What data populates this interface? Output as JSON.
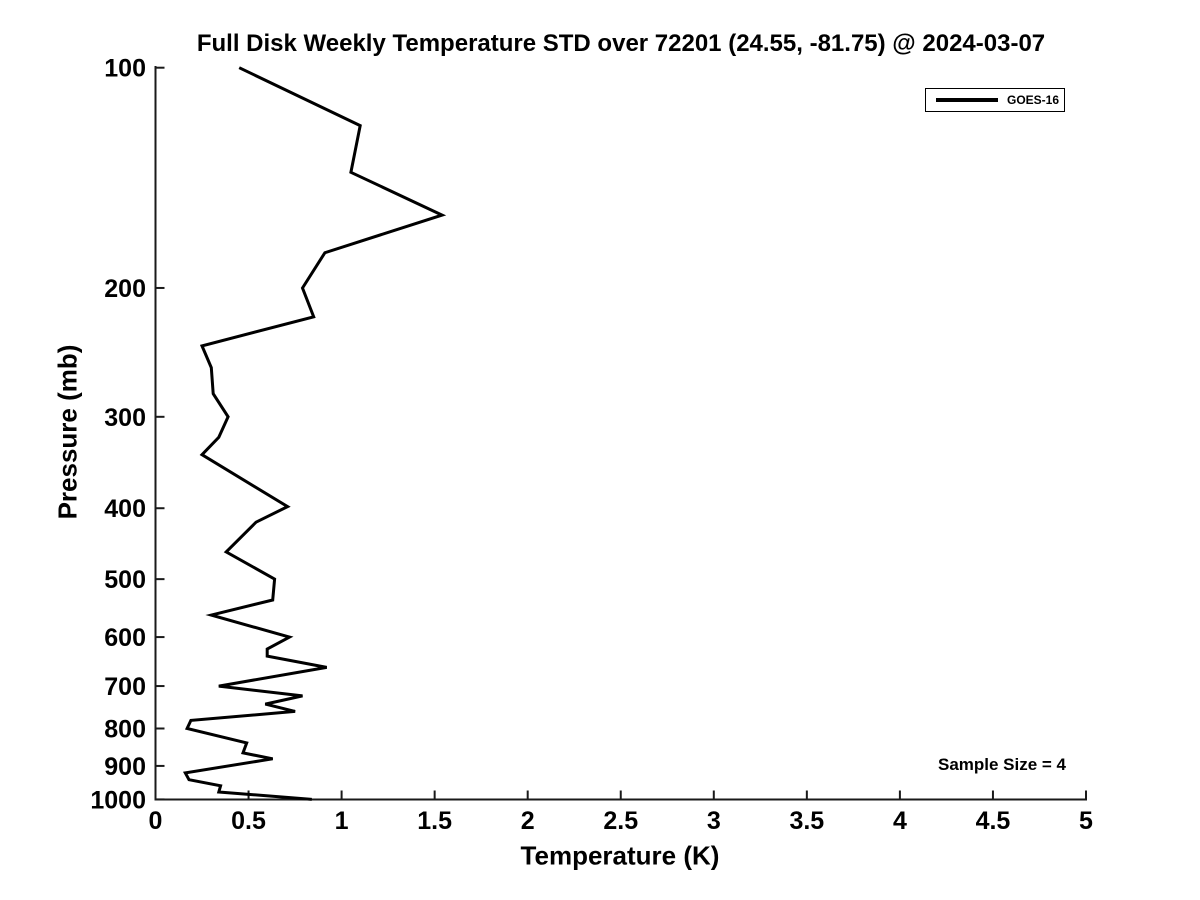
{
  "figure": {
    "background": "#ffffff"
  },
  "colors": {
    "line": "#000000",
    "axis": "#1a1a1a",
    "text": "#000000"
  },
  "chart_data": {
    "type": "line",
    "title": "Full Disk Weekly Temperature STD over 72201 (24.55, -81.75) @ 2024-03-07",
    "xlabel": "Temperature (K)",
    "ylabel": "Pressure (mb)",
    "xlim": [
      0,
      5
    ],
    "ylim": [
      100,
      1000
    ],
    "yscale": "log",
    "y_inverted": true,
    "grid": false,
    "xticks": [
      0,
      0.5,
      1,
      1.5,
      2,
      2.5,
      3,
      3.5,
      4,
      4.5,
      5
    ],
    "xtick_labels": [
      "0",
      "0.5",
      "1",
      "1.5",
      "2",
      "2.5",
      "3",
      "3.5",
      "4",
      "4.5",
      "5"
    ],
    "yticks": [
      100,
      200,
      300,
      400,
      500,
      600,
      700,
      800,
      900,
      1000
    ],
    "ytick_labels": [
      "100",
      "200",
      "300",
      "400",
      "500",
      "600",
      "700",
      "800",
      "900",
      "1000"
    ],
    "annotation": "Sample Size = 4",
    "legend": {
      "position": "top-right",
      "entries": [
        {
          "label": "GOES-16",
          "color": "#000000"
        }
      ]
    },
    "series": [
      {
        "name": "GOES-16",
        "color": "#000000",
        "line_width": 3,
        "points": [
          [
            0.45,
            100
          ],
          [
            1.1,
            120
          ],
          [
            1.05,
            139
          ],
          [
            1.54,
            159
          ],
          [
            0.91,
            179
          ],
          [
            0.79,
            200
          ],
          [
            0.85,
            219
          ],
          [
            0.25,
            240
          ],
          [
            0.3,
            257
          ],
          [
            0.31,
            279
          ],
          [
            0.39,
            300
          ],
          [
            0.34,
            320
          ],
          [
            0.25,
            338
          ],
          [
            0.71,
            398
          ],
          [
            0.54,
            418
          ],
          [
            0.38,
            459
          ],
          [
            0.64,
            500
          ],
          [
            0.63,
            534
          ],
          [
            0.3,
            560
          ],
          [
            0.72,
            600
          ],
          [
            0.6,
            623
          ],
          [
            0.6,
            637
          ],
          [
            0.92,
            660
          ],
          [
            0.34,
            700
          ],
          [
            0.79,
            722
          ],
          [
            0.59,
            741
          ],
          [
            0.75,
            758
          ],
          [
            0.19,
            780
          ],
          [
            0.17,
            800
          ],
          [
            0.49,
            837
          ],
          [
            0.47,
            864
          ],
          [
            0.63,
            880
          ],
          [
            0.16,
            920
          ],
          [
            0.18,
            940
          ],
          [
            0.35,
            958
          ],
          [
            0.34,
            977
          ],
          [
            0.84,
            1000
          ]
        ]
      }
    ]
  }
}
